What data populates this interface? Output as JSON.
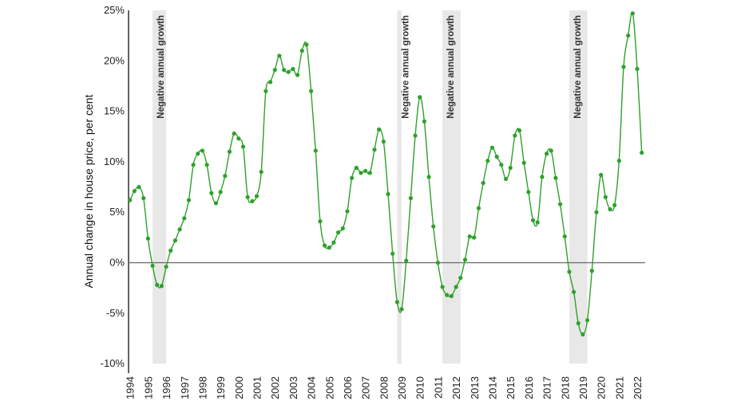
{
  "chart_data": {
    "type": "line",
    "title": "",
    "xlabel": "",
    "ylabel": "Annual change in house price, per cent",
    "ylim": [
      -10,
      25
    ],
    "xlim": [
      1994,
      2022.25
    ],
    "grid": false,
    "yticks": [
      25,
      20,
      15,
      10,
      5,
      0,
      -5,
      -10
    ],
    "ytick_labels": [
      "25%",
      "20%",
      "15%",
      "10%",
      "5%",
      "0%",
      "-5%",
      "-10%"
    ],
    "xtick_labels": [
      "1994",
      "1995",
      "1996",
      "1997",
      "1998",
      "1999",
      "2000",
      "2001",
      "2002",
      "2003",
      "2004",
      "2005",
      "2006",
      "2007",
      "2008",
      "2009",
      "2010",
      "2011",
      "2012",
      "2013",
      "2014",
      "2015",
      "2016",
      "2017",
      "2018",
      "2019",
      "2020",
      "2021",
      "2022"
    ],
    "x_start": 1994,
    "x_step": 0.25,
    "series": [
      {
        "name": "Annual change in house price",
        "color": "#2ea12a",
        "values": [
          6.2,
          7.1,
          7.5,
          6.4,
          2.4,
          -0.3,
          -2.2,
          -2.3,
          -0.4,
          1.2,
          2.2,
          3.3,
          4.4,
          6.2,
          9.7,
          10.8,
          11.1,
          9.7,
          6.9,
          5.9,
          7.0,
          8.6,
          11.0,
          12.8,
          12.3,
          11.5,
          6.5,
          6.1,
          6.6,
          9.0,
          17.0,
          17.9,
          19.1,
          20.5,
          19.1,
          18.9,
          19.2,
          18.6,
          21.0,
          21.6,
          17.0,
          11.1,
          4.1,
          1.7,
          1.5,
          2.0,
          3.0,
          3.4,
          5.1,
          8.4,
          9.4,
          8.9,
          9.1,
          8.9,
          11.2,
          13.2,
          12.0,
          6.8,
          0.9,
          -3.9,
          -4.6,
          0.2,
          6.4,
          12.6,
          16.4,
          14.0,
          8.5,
          3.6,
          0.0,
          -2.4,
          -3.2,
          -3.3,
          -2.4,
          -1.5,
          0.3,
          2.6,
          2.5,
          5.4,
          7.9,
          10.1,
          11.4,
          10.5,
          9.7,
          8.3,
          9.4,
          12.6,
          13.1,
          9.9,
          7.0,
          4.2,
          4.0,
          8.5,
          10.8,
          11.1,
          8.4,
          5.8,
          2.6,
          -0.9,
          -2.9,
          -6.0,
          -7.1,
          -5.7,
          -0.8,
          5.0,
          8.7,
          6.5,
          5.3,
          5.7,
          10.1,
          19.4,
          22.5,
          24.7,
          19.2,
          10.9
        ]
      }
    ],
    "shaded_regions": [
      {
        "label": "Negative annual growth",
        "from": 1995.25,
        "to": 1996.0
      },
      {
        "label": "Negative annual growth",
        "from": 2008.75,
        "to": 2009.0
      },
      {
        "label": "Negative annual growth",
        "from": 2011.25,
        "to": 2012.25
      },
      {
        "label": "Negative annual growth",
        "from": 2018.25,
        "to": 2019.25
      }
    ],
    "shade_color": "#e8e8e8",
    "zero_line_color": "#666666"
  }
}
